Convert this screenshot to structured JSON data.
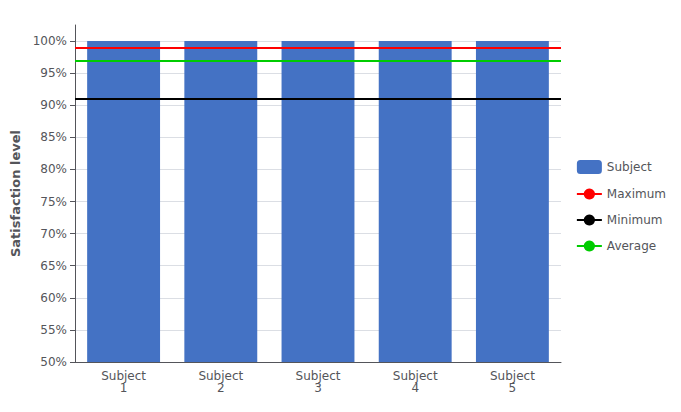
{
  "chart_data": {
    "type": "bar",
    "categories": [
      "Subject\n1",
      "Subject\n2",
      "Subject\n3",
      "Subject\n4",
      "Subject\n5"
    ],
    "ylabel": "Satisfaction level",
    "ylim": [
      0.5,
      1.025
    ],
    "yticks": [
      {
        "value": 0.5,
        "label": "50%"
      },
      {
        "value": 0.55,
        "label": "55%"
      },
      {
        "value": 0.6,
        "label": "60%"
      },
      {
        "value": 0.65,
        "label": "65%"
      },
      {
        "value": 0.7,
        "label": "70%"
      },
      {
        "value": 0.75,
        "label": "75%"
      },
      {
        "value": 0.8,
        "label": "80%"
      },
      {
        "value": 0.85,
        "label": "85%"
      },
      {
        "value": 0.9,
        "label": "90%"
      },
      {
        "value": 0.95,
        "label": "95%"
      },
      {
        "value": 1.0,
        "label": "100%"
      }
    ],
    "grid": true,
    "legend": "right",
    "series": [
      {
        "name": "Subject",
        "type": "bar",
        "color": "#4472C4",
        "values": [
          1.0,
          1.0,
          1.0,
          1.0,
          1.0
        ]
      },
      {
        "name": "Maximum",
        "type": "hline",
        "color": "#FF0000",
        "value": 0.993
      },
      {
        "name": "Minimum",
        "type": "hline",
        "color": "#000000",
        "value": 0.906
      },
      {
        "name": "Average",
        "type": "hline",
        "color": "#00CC00",
        "value": 0.975
      }
    ]
  }
}
